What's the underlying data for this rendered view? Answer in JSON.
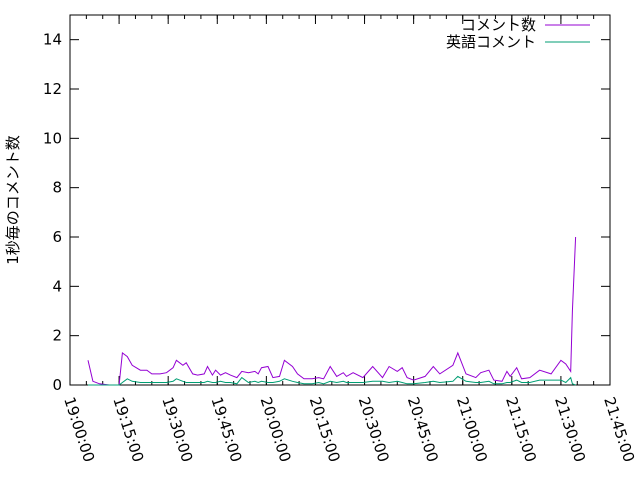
{
  "chart_data": {
    "type": "line",
    "title": "",
    "xlabel": "",
    "ylabel": "1秒毎のコメント数",
    "xlim": [
      "19:00:00",
      "21:45:00"
    ],
    "ylim": [
      0,
      15
    ],
    "xticks": [
      "19:00:00",
      "19:15:00",
      "19:30:00",
      "19:45:00",
      "20:00:00",
      "20:15:00",
      "20:30:00",
      "20:45:00",
      "21:00:00",
      "21:15:00",
      "21:30:00",
      "21:45:00"
    ],
    "yticks": [
      "0",
      "2",
      "4",
      "6",
      "8",
      "10",
      "12",
      "14"
    ],
    "grid": false,
    "legend_position": "top-right",
    "x": [
      "19:05:30",
      "19:07:00",
      "19:09:00",
      "19:12:00",
      "19:15:00",
      "19:16:00",
      "19:17:30",
      "19:19:00",
      "19:21:30",
      "19:23:30",
      "19:25:00",
      "19:27:30",
      "19:29:30",
      "19:31:30",
      "19:32:30",
      "19:34:30",
      "19:35:30",
      "19:37:30",
      "19:39:00",
      "19:41:00",
      "19:42:00",
      "19:43:30",
      "19:44:30",
      "19:46:00",
      "19:47:30",
      "19:49:00",
      "19:51:00",
      "19:52:30",
      "19:54:30",
      "19:56:30",
      "19:57:30",
      "19:58:30",
      "20:00:30",
      "20:02:00",
      "20:04:00",
      "20:05:30",
      "20:08:00",
      "20:09:30",
      "20:11:30",
      "20:14:00",
      "20:16:00",
      "20:17:30",
      "20:19:30",
      "20:21:30",
      "20:23:30",
      "20:24:30",
      "20:26:30",
      "20:29:30",
      "20:32:30",
      "20:35:30",
      "20:37:30",
      "20:40:00",
      "20:41:30",
      "20:43:00",
      "20:45:00",
      "20:48:30",
      "20:51:00",
      "20:53:00",
      "20:57:00",
      "20:58:30",
      "21:01:00",
      "21:04:00",
      "21:05:30",
      "21:08:00",
      "21:09:30",
      "21:12:00",
      "21:13:30",
      "21:14:30",
      "21:16:30",
      "21:18:00",
      "21:20:30",
      "21:23:30",
      "21:27:00",
      "21:30:00",
      "21:31:30",
      "21:33:00",
      "21:33:30",
      "21:34:30"
    ],
    "series": [
      {
        "name": "コメント数",
        "color": "#9400d3",
        "values": [
          1.0,
          0.15,
          0.05,
          0.0,
          0.0,
          1.3,
          1.15,
          0.8,
          0.6,
          0.6,
          0.45,
          0.45,
          0.5,
          0.7,
          1.0,
          0.8,
          0.9,
          0.45,
          0.4,
          0.45,
          0.75,
          0.4,
          0.6,
          0.4,
          0.5,
          0.4,
          0.3,
          0.55,
          0.5,
          0.55,
          0.45,
          0.7,
          0.75,
          0.3,
          0.35,
          1.0,
          0.75,
          0.45,
          0.25,
          0.25,
          0.3,
          0.25,
          0.75,
          0.35,
          0.5,
          0.35,
          0.5,
          0.3,
          0.75,
          0.3,
          0.75,
          0.55,
          0.7,
          0.3,
          0.2,
          0.35,
          0.75,
          0.45,
          0.8,
          1.3,
          0.45,
          0.3,
          0.5,
          0.6,
          0.2,
          0.15,
          0.55,
          0.35,
          0.7,
          0.25,
          0.3,
          0.6,
          0.45,
          1.0,
          0.85,
          0.55,
          3.0,
          6.0
        ]
      },
      {
        "name": "英語コメント",
        "color": "#009e73",
        "values": [
          0,
          0,
          0,
          0,
          0,
          0.1,
          0.25,
          0.15,
          0.1,
          0.1,
          0.1,
          0.1,
          0.1,
          0.15,
          0.25,
          0.15,
          0.1,
          0.1,
          0.1,
          0.1,
          0.15,
          0.1,
          0.1,
          0.15,
          0.1,
          0.1,
          0.05,
          0.3,
          0.1,
          0.15,
          0.1,
          0.15,
          0.1,
          0.1,
          0.15,
          0.25,
          0.15,
          0.1,
          0.05,
          0.05,
          0.1,
          0.05,
          0.15,
          0.1,
          0.15,
          0.1,
          0.1,
          0.1,
          0.15,
          0.15,
          0.1,
          0.15,
          0.1,
          0.05,
          0.05,
          0.1,
          0.15,
          0.1,
          0.15,
          0.35,
          0.15,
          0.1,
          0.1,
          0.15,
          0.05,
          0.05,
          0.1,
          0.1,
          0.2,
          0.1,
          0.1,
          0.2,
          0.2,
          0.2,
          0.1,
          0.3,
          0.05,
          0.0
        ]
      }
    ]
  }
}
